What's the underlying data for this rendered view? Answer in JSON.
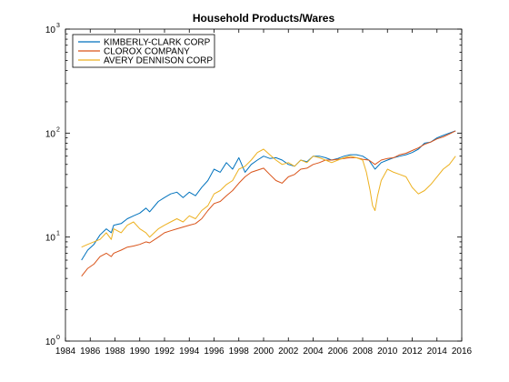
{
  "chart_data": {
    "type": "line",
    "title": "Household Products/Wares",
    "xlabel": "",
    "ylabel": "",
    "yscale": "log",
    "xlim": [
      1984,
      2016
    ],
    "ylim": [
      1,
      1000
    ],
    "x_ticks": [
      "1984",
      "1986",
      "1988",
      "1990",
      "1992",
      "1994",
      "1996",
      "1998",
      "2000",
      "2002",
      "2004",
      "2006",
      "2008",
      "2010",
      "2012",
      "2014",
      "2016"
    ],
    "y_ticks": [
      {
        "value": 1,
        "base": "10",
        "exp": "0"
      },
      {
        "value": 10,
        "base": "10",
        "exp": "1"
      },
      {
        "value": 100,
        "base": "10",
        "exp": "2"
      },
      {
        "value": 1000,
        "base": "10",
        "exp": "3"
      }
    ],
    "legend_position": "top-left",
    "grid": false,
    "series": [
      {
        "name": "KIMBERLY-CLARK CORP",
        "color": "#0072BD",
        "x": [
          1985.3,
          1985.8,
          1986.3,
          1986.8,
          1987.3,
          1987.7,
          1987.9,
          1988.5,
          1989.0,
          1989.5,
          1990.0,
          1990.5,
          1990.8,
          1991.5,
          1992.0,
          1992.5,
          1993.0,
          1993.5,
          1994.0,
          1994.5,
          1995.0,
          1995.5,
          1996.0,
          1996.5,
          1997.0,
          1997.5,
          1998.0,
          1998.5,
          1999.0,
          1999.5,
          2000.0,
          2000.5,
          2001.0,
          2001.5,
          2002.0,
          2002.5,
          2003.0,
          2003.5,
          2004.0,
          2004.5,
          2005.0,
          2005.5,
          2006.0,
          2006.5,
          2007.0,
          2007.5,
          2008.0,
          2008.5,
          2009.0,
          2009.5,
          2010.0,
          2010.5,
          2011.0,
          2011.5,
          2012.0,
          2012.5,
          2013.0,
          2013.5,
          2014.0,
          2014.5,
          2015.0,
          2015.5
        ],
        "y": [
          6,
          7.5,
          8.5,
          10.5,
          12,
          11,
          13,
          13.5,
          15,
          16,
          17,
          19,
          17.5,
          22,
          24,
          26,
          27,
          24,
          27,
          25,
          30,
          35,
          45,
          42,
          52,
          45,
          58,
          42,
          50,
          55,
          60,
          57,
          58,
          55,
          50,
          48,
          55,
          53,
          60,
          60,
          58,
          55,
          57,
          60,
          62,
          62,
          60,
          55,
          45,
          52,
          55,
          58,
          60,
          62,
          65,
          70,
          80,
          82,
          90,
          95,
          100,
          105
        ]
      },
      {
        "name": "CLOROX COMPANY",
        "color": "#D95319",
        "x": [
          1985.3,
          1985.8,
          1986.3,
          1986.8,
          1987.3,
          1987.7,
          1987.9,
          1988.5,
          1989.0,
          1989.5,
          1990.0,
          1990.5,
          1990.8,
          1991.5,
          1992.0,
          1992.5,
          1993.0,
          1993.5,
          1994.0,
          1994.5,
          1995.0,
          1995.5,
          1996.0,
          1996.5,
          1997.0,
          1997.5,
          1998.0,
          1998.5,
          1999.0,
          1999.5,
          2000.0,
          2000.5,
          2001.0,
          2001.5,
          2002.0,
          2002.5,
          2003.0,
          2003.5,
          2004.0,
          2004.5,
          2005.0,
          2005.5,
          2006.0,
          2006.5,
          2007.0,
          2007.5,
          2008.0,
          2008.5,
          2009.0,
          2009.5,
          2010.0,
          2010.5,
          2011.0,
          2011.5,
          2012.0,
          2012.5,
          2013.0,
          2013.5,
          2014.0,
          2014.5,
          2015.0,
          2015.5
        ],
        "y": [
          4.2,
          5,
          5.5,
          6.5,
          7,
          6.5,
          7,
          7.5,
          8,
          8.2,
          8.5,
          9,
          8.8,
          10,
          11,
          11.5,
          12,
          12.5,
          13,
          13.5,
          15,
          18,
          21,
          22,
          25,
          28,
          33,
          38,
          42,
          44,
          46,
          40,
          35,
          33,
          38,
          40,
          45,
          46,
          50,
          52,
          55,
          55,
          56,
          57,
          58,
          58,
          56,
          55,
          50,
          55,
          57,
          58,
          62,
          64,
          68,
          72,
          78,
          82,
          88,
          92,
          98,
          105
        ]
      },
      {
        "name": "AVERY DENNISON CORP",
        "color": "#EDB120",
        "x": [
          1985.3,
          1985.8,
          1986.3,
          1986.8,
          1987.3,
          1987.7,
          1987.9,
          1988.5,
          1989.0,
          1989.5,
          1990.0,
          1990.5,
          1990.8,
          1991.5,
          1992.0,
          1992.5,
          1993.0,
          1993.5,
          1994.0,
          1994.5,
          1995.0,
          1995.5,
          1996.0,
          1996.5,
          1997.0,
          1997.5,
          1998.0,
          1998.5,
          1999.0,
          1999.5,
          2000.0,
          2000.5,
          2001.0,
          2001.5,
          2002.0,
          2002.5,
          2003.0,
          2003.5,
          2004.0,
          2004.5,
          2005.0,
          2005.5,
          2006.0,
          2006.5,
          2007.0,
          2007.5,
          2008.0,
          2008.3,
          2008.6,
          2008.8,
          2009.0,
          2009.2,
          2009.5,
          2010.0,
          2010.5,
          2011.0,
          2011.5,
          2012.0,
          2012.5,
          2013.0,
          2013.5,
          2014.0,
          2014.5,
          2015.0,
          2015.5
        ],
        "y": [
          8,
          8.5,
          9,
          9.5,
          11,
          9.5,
          12,
          11,
          13,
          14,
          12,
          11,
          10,
          12,
          13,
          14,
          15,
          14,
          16,
          15,
          18,
          20,
          26,
          28,
          32,
          35,
          45,
          48,
          55,
          65,
          70,
          62,
          55,
          50,
          52,
          48,
          55,
          52,
          60,
          58,
          55,
          52,
          55,
          58,
          60,
          58,
          55,
          42,
          28,
          20,
          18,
          25,
          35,
          45,
          42,
          40,
          38,
          30,
          26,
          28,
          32,
          38,
          45,
          50,
          60
        ]
      }
    ]
  }
}
